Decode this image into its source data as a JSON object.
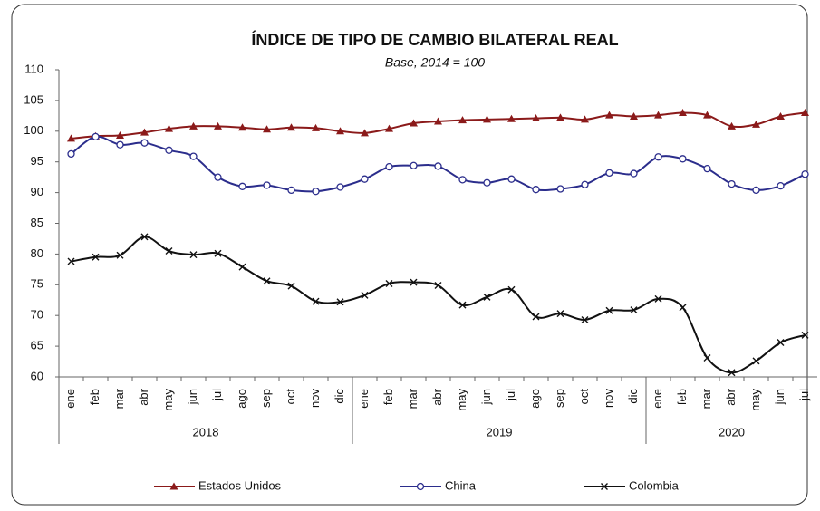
{
  "chart_data": {
    "type": "line",
    "title": "ÍNDICE DE TIPO DE CAMBIO BILATERAL REAL",
    "subtitle": "Base, 2014 = 100",
    "categories": [
      "ene",
      "feb",
      "mar",
      "abr",
      "may",
      "jun",
      "jul",
      "ago",
      "sep",
      "oct",
      "nov",
      "dic",
      "ene",
      "feb",
      "mar",
      "abr",
      "may",
      "jun",
      "jul",
      "ago",
      "sep",
      "oct",
      "nov",
      "dic",
      "ene",
      "feb",
      "mar",
      "abr",
      "may",
      "jun",
      "jul"
    ],
    "year_labels": [
      "2018",
      "2019",
      "2020"
    ],
    "ylim": [
      60,
      110
    ],
    "yticks": [
      60,
      65,
      70,
      75,
      80,
      85,
      90,
      95,
      100,
      105,
      110
    ],
    "legend": "bottom",
    "smooth": true,
    "series": [
      {
        "name": "Estados Unidos",
        "color": "#8b1a1a",
        "marker": "triangle",
        "values": [
          98.8,
          99.2,
          99.3,
          99.8,
          100.4,
          100.8,
          100.8,
          100.6,
          100.3,
          100.6,
          100.5,
          100.0,
          99.7,
          100.4,
          101.3,
          101.6,
          101.8,
          101.9,
          102.0,
          102.1,
          102.2,
          101.9,
          102.6,
          102.4,
          102.6,
          103.0,
          102.6,
          100.8,
          101.1,
          102.4,
          103.0
        ]
      },
      {
        "name": "China",
        "color": "#2b2d8c",
        "marker": "circle",
        "values": [
          96.3,
          99.1,
          97.8,
          98.1,
          96.9,
          95.9,
          92.5,
          91.0,
          91.2,
          90.4,
          90.2,
          90.9,
          92.2,
          94.2,
          94.4,
          94.3,
          92.1,
          91.6,
          92.2,
          90.5,
          90.6,
          91.3,
          93.2,
          93.1,
          95.8,
          95.5,
          93.9,
          91.4,
          90.4,
          91.1,
          93.0
        ]
      },
      {
        "name": "Colombia",
        "color": "#111111",
        "marker": "x",
        "values": [
          78.8,
          79.5,
          79.8,
          82.8,
          80.5,
          79.9,
          80.1,
          77.9,
          75.6,
          74.8,
          72.3,
          72.2,
          73.3,
          75.2,
          75.4,
          74.9,
          71.7,
          73.0,
          74.2,
          69.8,
          70.3,
          69.3,
          70.8,
          70.9,
          72.7,
          71.3,
          63.1,
          60.7,
          62.6,
          65.6,
          66.8
        ]
      }
    ]
  }
}
